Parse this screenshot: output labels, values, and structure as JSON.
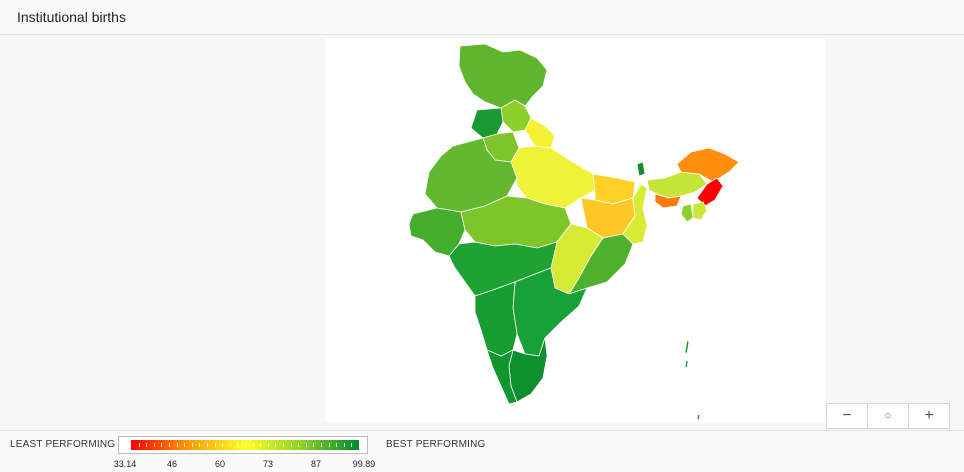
{
  "header": {
    "title": "Institutional births"
  },
  "zoom": {
    "out_label": "−",
    "reset_label": "○",
    "in_label": "+"
  },
  "legend": {
    "least_label": "LEAST PERFORMING",
    "best_label": "BEST PERFORMING",
    "tick_labels": [
      "33.14",
      "46",
      "60",
      "73",
      "87",
      "99.89"
    ],
    "colors": [
      "#ff0000",
      "#ff9900",
      "#ffff22",
      "#8bd12a",
      "#008a2e"
    ]
  }
}
